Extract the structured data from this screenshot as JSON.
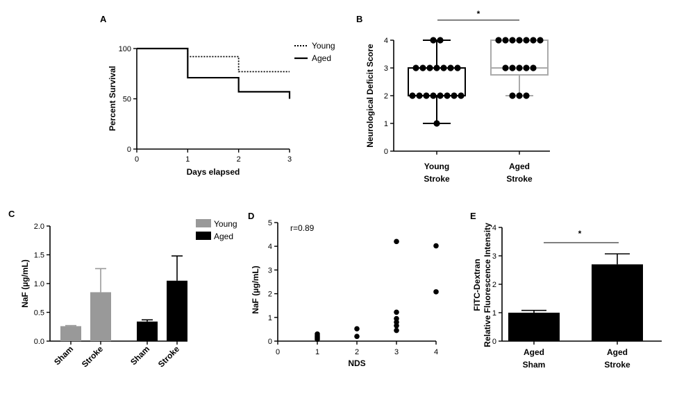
{
  "colors": {
    "young_gray": "#999999",
    "aged_black": "#000000",
    "aged_box_gray": "#aaaaaa"
  },
  "chart_data": [
    {
      "panel": "A",
      "type": "line",
      "title": "",
      "xlabel": "Days elapsed",
      "ylabel": "Percent Survival",
      "xlim": [
        0,
        3
      ],
      "ylim": [
        0,
        100
      ],
      "xticks": [
        "0",
        "1",
        "2",
        "3"
      ],
      "yticks": [
        "0",
        "50",
        "100"
      ],
      "legend": "top-right",
      "series": [
        {
          "name": "Young",
          "style": "dotted",
          "steps": [
            [
              0,
              100
            ],
            [
              1,
              92
            ],
            [
              2,
              77
            ],
            [
              3,
              77
            ]
          ]
        },
        {
          "name": "Aged",
          "style": "solid",
          "steps": [
            [
              0,
              100
            ],
            [
              1,
              71
            ],
            [
              2,
              57
            ],
            [
              3,
              50
            ]
          ]
        }
      ]
    },
    {
      "panel": "B",
      "type": "box",
      "ylabel": "Neurological Deficit Score",
      "ylim": [
        0,
        4
      ],
      "yticks": [
        "0",
        "1",
        "2",
        "3",
        "4"
      ],
      "significance": "*",
      "groups": [
        {
          "line1": "Young",
          "line2": "Stroke",
          "min": 1,
          "q1": 2,
          "median": 2,
          "q3": 3,
          "max": 4,
          "points": [
            4,
            4,
            3,
            3,
            3,
            3,
            3,
            3,
            3,
            2,
            2,
            2,
            2,
            2,
            2,
            2,
            2,
            1
          ]
        },
        {
          "line1": "Aged",
          "line2": "Stroke",
          "min": 2,
          "q1": 2.75,
          "median": 3,
          "q3": 4,
          "max": 4,
          "points": [
            4,
            4,
            4,
            4,
            4,
            4,
            4,
            3,
            3,
            3,
            3,
            3,
            2,
            2,
            2
          ]
        }
      ]
    },
    {
      "panel": "C",
      "type": "bar",
      "ylabel": "NaF (µg/mL)",
      "ylim": [
        0,
        2.0
      ],
      "yticks": [
        "0.0",
        "0.5",
        "1.0",
        "1.5",
        "2.0"
      ],
      "legend": "top-right",
      "legend_entries": [
        "Young",
        "Aged"
      ],
      "bars": [
        {
          "label": "Sham",
          "group": "Young",
          "value": 0.26,
          "err": 0.01
        },
        {
          "label": "Stroke",
          "group": "Young",
          "value": 0.85,
          "err": 0.41
        },
        {
          "label": "Sham",
          "group": "Aged",
          "value": 0.34,
          "err": 0.03
        },
        {
          "label": "Stroke",
          "group": "Aged",
          "value": 1.05,
          "err": 0.43
        }
      ]
    },
    {
      "panel": "D",
      "type": "scatter",
      "xlabel": "NDS",
      "ylabel": "NaF (µg/mL)",
      "xlim": [
        0,
        4
      ],
      "ylim": [
        0,
        5
      ],
      "xticks": [
        "0",
        "1",
        "2",
        "3",
        "4"
      ],
      "yticks": [
        "0",
        "1",
        "2",
        "3",
        "4",
        "5"
      ],
      "annotation": "r=0.89",
      "points": [
        [
          1,
          0.3
        ],
        [
          1,
          0.22
        ],
        [
          1,
          0.15
        ],
        [
          1,
          0.08
        ],
        [
          2,
          0.52
        ],
        [
          2,
          0.2
        ],
        [
          3,
          4.2
        ],
        [
          3,
          1.22
        ],
        [
          3,
          0.95
        ],
        [
          3,
          0.8
        ],
        [
          3,
          0.65
        ],
        [
          3,
          0.45
        ],
        [
          4,
          4.02
        ],
        [
          4,
          2.08
        ]
      ]
    },
    {
      "panel": "E",
      "type": "bar",
      "ylabel_line1": "FITC-Dextran",
      "ylabel_line2": "Relative Fluorescence Intensity",
      "ylim": [
        0,
        4
      ],
      "yticks": [
        "0",
        "1",
        "2",
        "3",
        "4"
      ],
      "significance": "*",
      "bars": [
        {
          "line1": "Aged",
          "line2": "Sham",
          "value": 1.0,
          "err": 0.08
        },
        {
          "line1": "Aged",
          "line2": "Stroke",
          "value": 2.7,
          "err": 0.37
        }
      ]
    }
  ]
}
